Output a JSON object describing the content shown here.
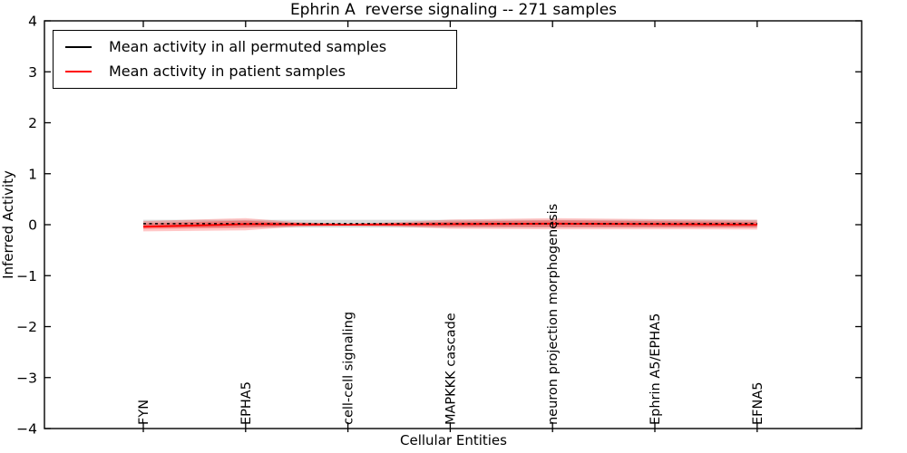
{
  "figure": {
    "title": "Ephrin A  reverse signaling -- 271 samples",
    "xlabel": "Cellular Entities",
    "ylabel": "Inferred Activity"
  },
  "legend": {
    "position": "upper left",
    "items": [
      {
        "label": "Mean activity in all permuted samples",
        "color": "#000000"
      },
      {
        "label": "Mean activity in patient samples",
        "color": "#ff0000"
      }
    ]
  },
  "chart_data": {
    "type": "line",
    "title": "Ephrin A  reverse signaling -- 271 samples",
    "xlabel": "Cellular Entities",
    "ylabel": "Inferred Activity",
    "ylim": [
      -4,
      4
    ],
    "grid": false,
    "legend_position": "upper left",
    "yticks": [
      {
        "value": 4,
        "label": "4"
      },
      {
        "value": 3,
        "label": "3"
      },
      {
        "value": 2,
        "label": "2"
      },
      {
        "value": 1,
        "label": "1"
      },
      {
        "value": 0,
        "label": "0"
      },
      {
        "value": -1,
        "label": "−1"
      },
      {
        "value": -2,
        "label": "−2"
      },
      {
        "value": -3,
        "label": "−3"
      },
      {
        "value": -4,
        "label": "−4"
      }
    ],
    "categories": [
      "FYN",
      "EPHA5",
      "cell-cell signaling",
      "MAPKKK cascade",
      "neuron projection morphogenesis",
      "Ephrin A5/EPHA5",
      "EFNA5"
    ],
    "series": [
      {
        "name": "Mean activity in all permuted samples",
        "color": "#000000",
        "linestyle": "dashed",
        "values": [
          0.02,
          0.02,
          0.02,
          0.02,
          0.02,
          0.02,
          0.02
        ]
      },
      {
        "name": "Mean activity in patient samples",
        "color": "#ff0000",
        "linestyle": "solid",
        "values": [
          -0.04,
          0.01,
          0.0,
          0.01,
          0.02,
          0.01,
          0.0
        ]
      }
    ],
    "bands": [
      {
        "name": "permuted-std-band",
        "color": "#808080",
        "alpha": 0.3,
        "x": [
          0,
          1,
          2,
          3,
          4,
          5,
          6
        ],
        "center": [
          0.02,
          0.02,
          0.02,
          0.02,
          0.02,
          0.02,
          0.02
        ],
        "half_width": [
          0.075,
          0.075,
          0.075,
          0.075,
          0.075,
          0.075,
          0.075
        ]
      },
      {
        "name": "patient-std-band-outer",
        "color": "#ff0000",
        "alpha": 0.22,
        "x": [
          0,
          1,
          1.5,
          2,
          2.5,
          3,
          4,
          5,
          6
        ],
        "center": [
          -0.03,
          0.01,
          0.005,
          0.0,
          0.005,
          0.01,
          0.02,
          0.01,
          0.0
        ],
        "half_width": [
          0.1,
          0.12,
          0.045,
          0.02,
          0.045,
          0.09,
          0.11,
          0.1,
          0.095
        ]
      },
      {
        "name": "patient-std-band-inner",
        "color": "#ff0000",
        "alpha": 0.28,
        "x": [
          0,
          1,
          1.5,
          2,
          2.5,
          3,
          4,
          5,
          6
        ],
        "center": [
          -0.03,
          0.01,
          0.005,
          0.0,
          0.005,
          0.01,
          0.02,
          0.01,
          0.0
        ],
        "half_width": [
          0.055,
          0.07,
          0.025,
          0.012,
          0.025,
          0.05,
          0.065,
          0.06,
          0.055
        ]
      }
    ]
  }
}
